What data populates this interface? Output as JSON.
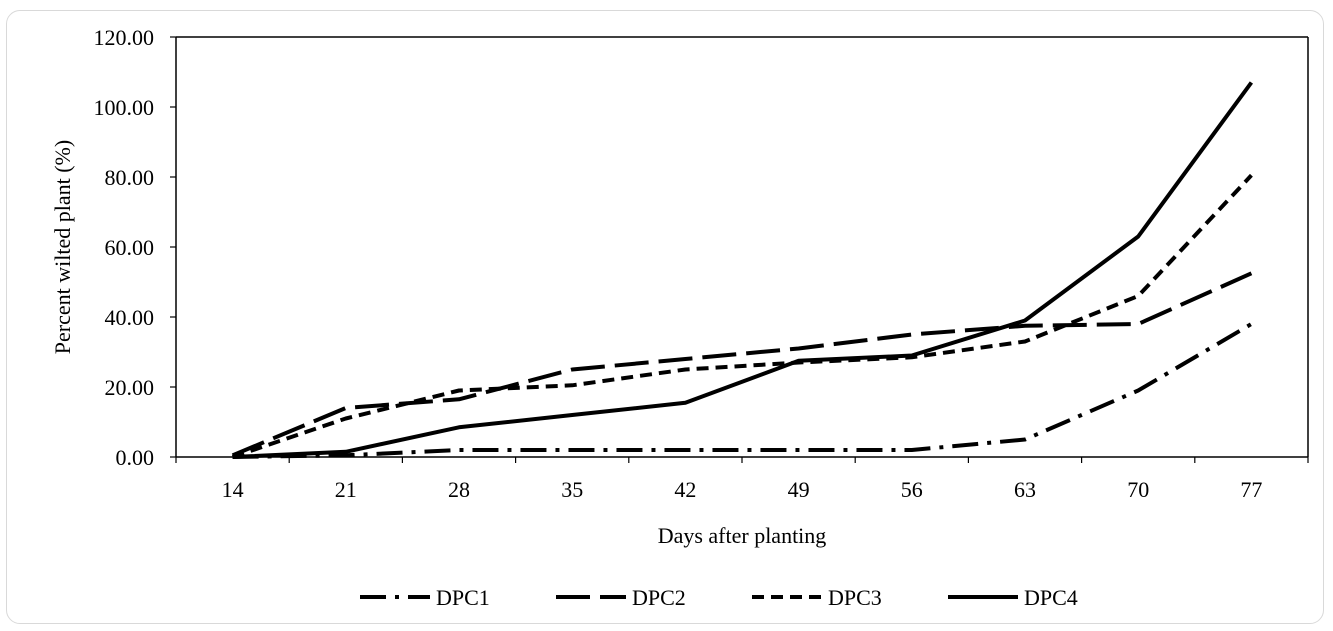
{
  "chart_data": {
    "type": "line",
    "x": [
      14,
      21,
      28,
      35,
      42,
      49,
      56,
      63,
      70,
      77
    ],
    "x_tick_labels": [
      "14",
      "21",
      "28",
      "35",
      "42",
      "49",
      "56",
      "63",
      "70",
      "77"
    ],
    "xlabel": "Days after planting",
    "ylabel": "Percent wilted plant (%)",
    "ylim": [
      0,
      120
    ],
    "y_tick_labels": [
      "0.00",
      "20.00",
      "40.00",
      "60.00",
      "80.00",
      "100.00",
      "120.00"
    ],
    "grid": false,
    "legend_position": "bottom",
    "line_color": "#000000",
    "series": [
      {
        "name": "DPC1",
        "dash": "dash-dot",
        "values": [
          0.0,
          0.5,
          2.0,
          2.0,
          2.0,
          2.0,
          2.0,
          5.0,
          19.0,
          38.0
        ]
      },
      {
        "name": "DPC2",
        "dash": "long-dash",
        "values": [
          0.5,
          14.0,
          16.5,
          25.0,
          28.0,
          31.0,
          35.0,
          37.5,
          38.0,
          52.5
        ]
      },
      {
        "name": "DPC3",
        "dash": "short-dash",
        "values": [
          0.0,
          11.0,
          19.0,
          20.5,
          25.0,
          27.0,
          28.5,
          33.0,
          46.0,
          80.5
        ]
      },
      {
        "name": "DPC4",
        "dash": "solid",
        "values": [
          0.0,
          1.5,
          8.5,
          12.0,
          15.5,
          27.5,
          29.0,
          39.0,
          63.0,
          107.0
        ]
      }
    ]
  }
}
